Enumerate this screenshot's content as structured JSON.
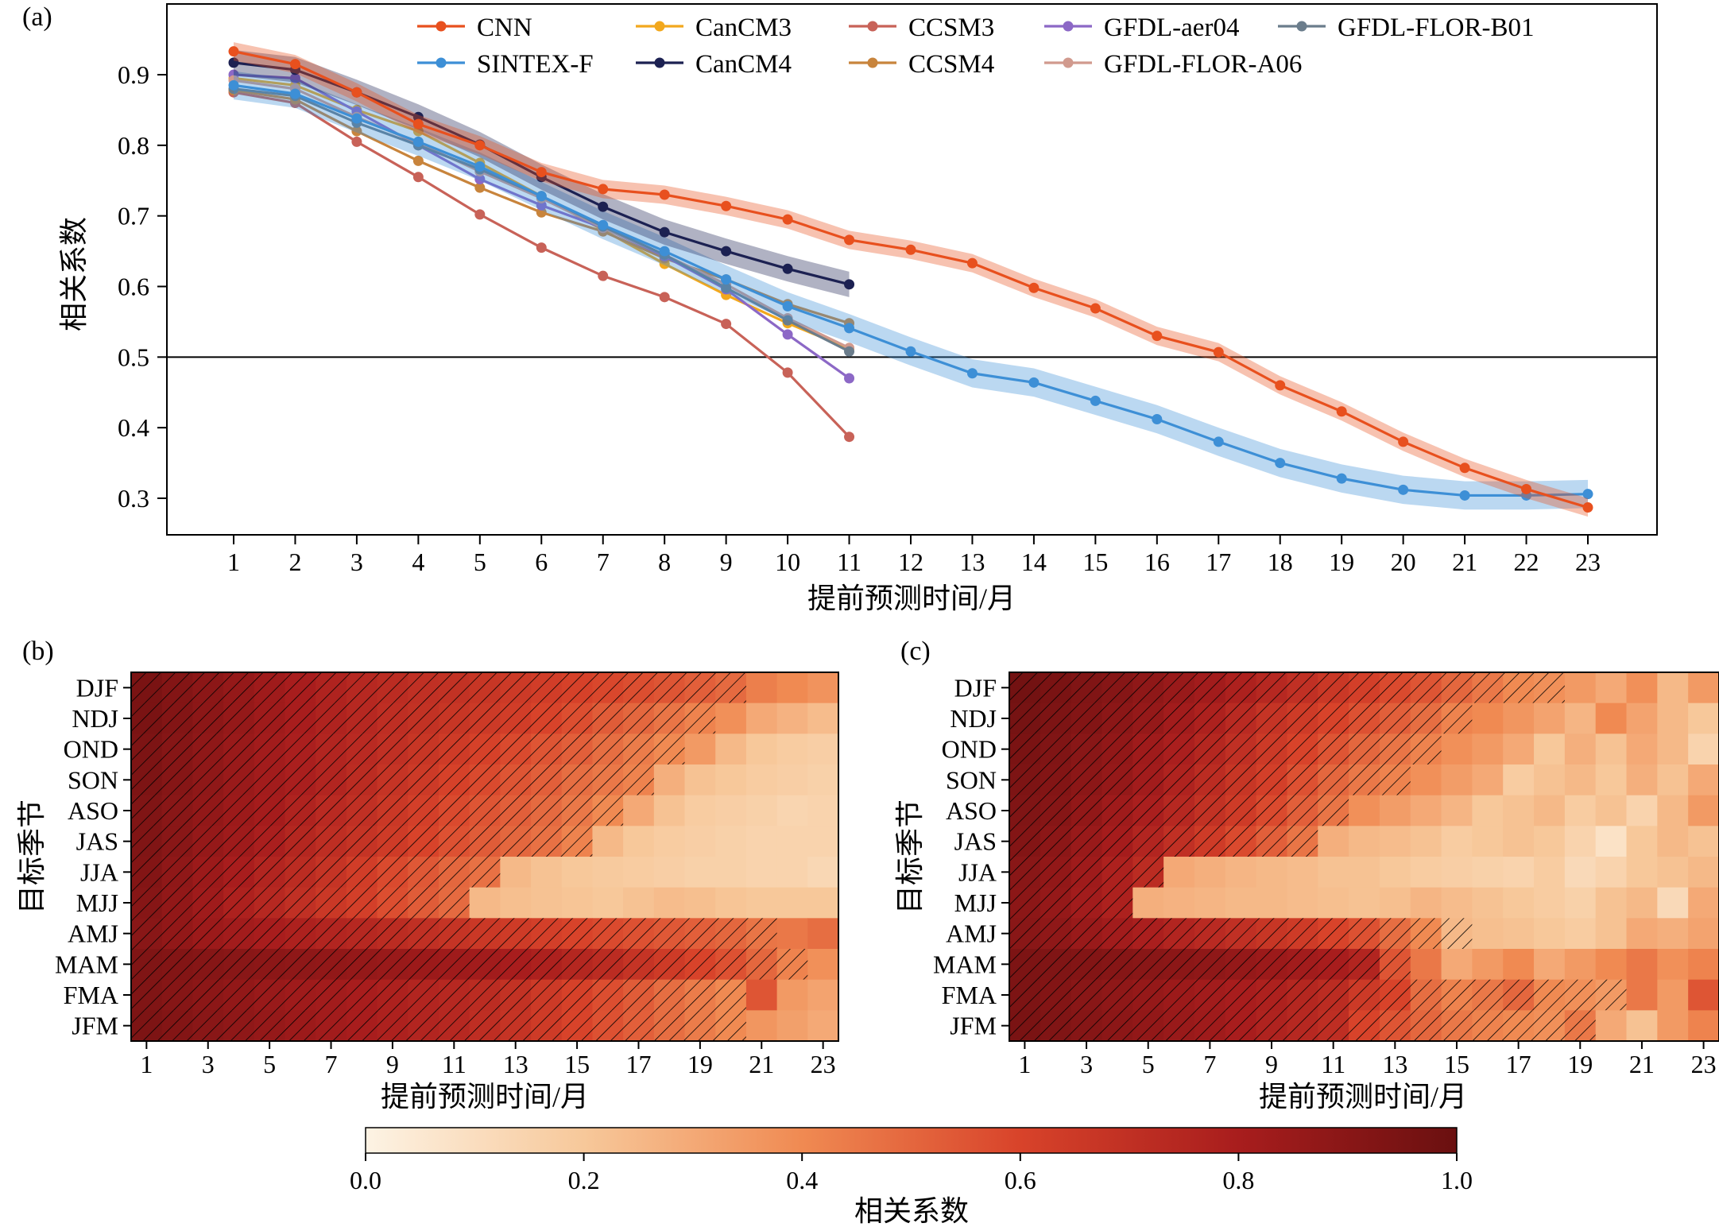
{
  "chart_data": [
    {
      "panel": "(a)",
      "type": "line",
      "xlabel": "提前预测时间/月",
      "ylabel": "相关系数",
      "xlim": [
        1,
        23
      ],
      "ylim": [
        0.25,
        1.0
      ],
      "xticks": [
        1,
        2,
        3,
        4,
        5,
        6,
        7,
        8,
        9,
        10,
        11,
        12,
        13,
        14,
        15,
        16,
        17,
        18,
        19,
        20,
        21,
        22,
        23
      ],
      "yticks": [
        0.3,
        0.4,
        0.5,
        0.6,
        0.7,
        0.8,
        0.9
      ],
      "reference_line": 0.5,
      "legend": "top",
      "series": [
        {
          "name": "CNN",
          "color": "#e8501e",
          "band": 0.013,
          "x": [
            1,
            2,
            3,
            4,
            5,
            6,
            7,
            8,
            9,
            10,
            11,
            12,
            13,
            14,
            15,
            16,
            17,
            18,
            19,
            20,
            21,
            22,
            23
          ],
          "values": [
            0.933,
            0.915,
            0.875,
            0.83,
            0.8,
            0.762,
            0.738,
            0.73,
            0.714,
            0.695,
            0.666,
            0.652,
            0.633,
            0.598,
            0.569,
            0.53,
            0.507,
            0.46,
            0.423,
            0.38,
            0.343,
            0.313,
            0.287
          ]
        },
        {
          "name": "SINTEX-F",
          "color": "#3d8fd6",
          "band": 0.02,
          "x": [
            1,
            2,
            3,
            4,
            5,
            6,
            7,
            8,
            9,
            10,
            11,
            12,
            13,
            14,
            15,
            16,
            17,
            18,
            19,
            20,
            21,
            22,
            23
          ],
          "values": [
            0.885,
            0.873,
            0.838,
            0.805,
            0.77,
            0.728,
            0.687,
            0.65,
            0.61,
            0.572,
            0.541,
            0.508,
            0.477,
            0.464,
            0.438,
            0.412,
            0.38,
            0.35,
            0.328,
            0.312,
            0.304,
            0.304,
            0.306
          ]
        },
        {
          "name": "CanCM3",
          "color": "#f2a81d",
          "x": [
            1,
            2,
            3,
            4,
            5,
            6,
            7,
            8,
            9,
            10,
            11
          ],
          "values": [
            0.895,
            0.885,
            0.85,
            0.82,
            0.775,
            0.728,
            0.68,
            0.632,
            0.588,
            0.548,
            0.512
          ]
        },
        {
          "name": "CanCM4",
          "color": "#1c2152",
          "band": 0.018,
          "x": [
            1,
            2,
            3,
            4,
            5,
            6,
            7,
            8,
            9,
            10,
            11
          ],
          "values": [
            0.917,
            0.907,
            0.875,
            0.84,
            0.801,
            0.755,
            0.713,
            0.677,
            0.65,
            0.625,
            0.603
          ]
        },
        {
          "name": "CCSM3",
          "color": "#c86258",
          "x": [
            1,
            2,
            3,
            4,
            5,
            6,
            7,
            8,
            9,
            10,
            11
          ],
          "values": [
            0.875,
            0.86,
            0.805,
            0.755,
            0.702,
            0.655,
            0.615,
            0.585,
            0.547,
            0.478,
            0.387
          ]
        },
        {
          "name": "CCSM4",
          "color": "#c8843c",
          "x": [
            1,
            2,
            3,
            4,
            5,
            6,
            7,
            8,
            9,
            10,
            11
          ],
          "values": [
            0.878,
            0.865,
            0.82,
            0.778,
            0.74,
            0.705,
            0.678,
            0.64,
            0.61,
            0.575,
            0.548
          ]
        },
        {
          "name": "GFDL-aer04",
          "color": "#8c68c6",
          "x": [
            1,
            2,
            3,
            4,
            5,
            6,
            7,
            8,
            9,
            10,
            11
          ],
          "values": [
            0.9,
            0.895,
            0.848,
            0.8,
            0.752,
            0.715,
            0.683,
            0.643,
            0.596,
            0.532,
            0.47
          ]
        },
        {
          "name": "GFDL-FLOR-A06",
          "color": "#d19a8e",
          "x": [
            1,
            2,
            3,
            4,
            5,
            6,
            7,
            8,
            9,
            10,
            11
          ],
          "values": [
            0.892,
            0.88,
            0.84,
            0.803,
            0.763,
            0.725,
            0.683,
            0.645,
            0.603,
            0.555,
            0.513
          ]
        },
        {
          "name": "GFDL-FLOR-B01",
          "color": "#6b7d8c",
          "x": [
            1,
            2,
            3,
            4,
            5,
            6,
            7,
            8,
            9,
            10,
            11
          ],
          "values": [
            0.88,
            0.87,
            0.832,
            0.8,
            0.766,
            0.728,
            0.685,
            0.645,
            0.598,
            0.552,
            0.508
          ]
        }
      ]
    },
    {
      "panel": "(b)",
      "type": "heatmap",
      "xlabel": "提前预测时间/月",
      "ylabel": "目标季节",
      "x": [
        1,
        2,
        3,
        4,
        5,
        6,
        7,
        8,
        9,
        10,
        11,
        12,
        13,
        14,
        15,
        16,
        17,
        18,
        19,
        20,
        21,
        22,
        23
      ],
      "xticklabels": [
        "1",
        "3",
        "5",
        "7",
        "9",
        "11",
        "13",
        "15",
        "17",
        "19",
        "21",
        "23"
      ],
      "seasons": [
        "DJF",
        "NDJ",
        "OND",
        "SON",
        "ASO",
        "JAS",
        "JJA",
        "MJJ",
        "AMJ",
        "MAM",
        "FMA",
        "JFM"
      ],
      "significant_length": [
        20,
        19,
        18,
        17,
        16,
        15,
        12,
        11,
        21,
        22,
        20,
        20
      ],
      "values": [
        [
          0.95,
          0.92,
          0.89,
          0.86,
          0.83,
          0.8,
          0.77,
          0.74,
          0.72,
          0.7,
          0.69,
          0.67,
          0.65,
          0.63,
          0.61,
          0.59,
          0.57,
          0.55,
          0.52,
          0.49,
          0.43,
          0.4,
          0.37
        ],
        [
          0.95,
          0.92,
          0.89,
          0.86,
          0.83,
          0.8,
          0.77,
          0.74,
          0.71,
          0.69,
          0.67,
          0.65,
          0.63,
          0.6,
          0.57,
          0.53,
          0.5,
          0.46,
          0.42,
          0.38,
          0.3,
          0.27,
          0.24
        ],
        [
          0.94,
          0.91,
          0.88,
          0.85,
          0.82,
          0.79,
          0.76,
          0.73,
          0.7,
          0.67,
          0.64,
          0.61,
          0.58,
          0.55,
          0.52,
          0.48,
          0.44,
          0.4,
          0.35,
          0.25,
          0.2,
          0.18,
          0.17
        ],
        [
          0.94,
          0.91,
          0.88,
          0.85,
          0.82,
          0.79,
          0.76,
          0.72,
          0.68,
          0.65,
          0.61,
          0.58,
          0.55,
          0.52,
          0.48,
          0.45,
          0.42,
          0.28,
          0.22,
          0.2,
          0.18,
          0.17,
          0.16
        ],
        [
          0.93,
          0.9,
          0.87,
          0.84,
          0.81,
          0.77,
          0.73,
          0.7,
          0.66,
          0.62,
          0.58,
          0.55,
          0.52,
          0.49,
          0.45,
          0.4,
          0.3,
          0.22,
          0.18,
          0.17,
          0.16,
          0.14,
          0.15
        ],
        [
          0.93,
          0.9,
          0.86,
          0.83,
          0.79,
          0.75,
          0.71,
          0.68,
          0.64,
          0.6,
          0.56,
          0.53,
          0.5,
          0.47,
          0.42,
          0.25,
          0.2,
          0.18,
          0.17,
          0.16,
          0.15,
          0.15,
          0.15
        ],
        [
          0.92,
          0.88,
          0.84,
          0.8,
          0.76,
          0.72,
          0.68,
          0.63,
          0.58,
          0.54,
          0.5,
          0.47,
          0.25,
          0.22,
          0.2,
          0.19,
          0.18,
          0.17,
          0.16,
          0.16,
          0.15,
          0.15,
          0.13
        ],
        [
          0.91,
          0.87,
          0.83,
          0.78,
          0.74,
          0.7,
          0.66,
          0.62,
          0.57,
          0.53,
          0.49,
          0.25,
          0.23,
          0.22,
          0.21,
          0.2,
          0.22,
          0.24,
          0.23,
          0.21,
          0.2,
          0.2,
          0.2
        ],
        [
          0.9,
          0.87,
          0.84,
          0.82,
          0.8,
          0.78,
          0.76,
          0.74,
          0.72,
          0.7,
          0.68,
          0.66,
          0.64,
          0.62,
          0.6,
          0.58,
          0.56,
          0.54,
          0.52,
          0.5,
          0.46,
          0.45,
          0.48
        ],
        [
          0.93,
          0.92,
          0.91,
          0.9,
          0.89,
          0.88,
          0.87,
          0.86,
          0.85,
          0.84,
          0.83,
          0.82,
          0.8,
          0.78,
          0.75,
          0.72,
          0.68,
          0.64,
          0.6,
          0.56,
          0.5,
          0.42,
          0.38
        ],
        [
          0.93,
          0.91,
          0.89,
          0.87,
          0.85,
          0.83,
          0.82,
          0.8,
          0.78,
          0.76,
          0.74,
          0.72,
          0.69,
          0.65,
          0.61,
          0.57,
          0.53,
          0.48,
          0.44,
          0.4,
          0.55,
          0.35,
          0.32
        ],
        [
          0.94,
          0.92,
          0.9,
          0.88,
          0.86,
          0.84,
          0.82,
          0.8,
          0.78,
          0.76,
          0.74,
          0.71,
          0.68,
          0.64,
          0.6,
          0.56,
          0.52,
          0.48,
          0.44,
          0.4,
          0.36,
          0.33,
          0.3
        ]
      ]
    },
    {
      "panel": "(c)",
      "type": "heatmap",
      "xlabel": "提前预测时间/月",
      "ylabel": "目标季节",
      "x": [
        1,
        2,
        3,
        4,
        5,
        6,
        7,
        8,
        9,
        10,
        11,
        12,
        13,
        14,
        15,
        16,
        17,
        18,
        19,
        20,
        21,
        22,
        23
      ],
      "xticklabels": [
        "1",
        "3",
        "5",
        "7",
        "9",
        "11",
        "13",
        "15",
        "17",
        "19",
        "21",
        "23"
      ],
      "seasons": [
        "DJF",
        "NDJ",
        "OND",
        "SON",
        "ASO",
        "JAS",
        "JJA",
        "MJJ",
        "AMJ",
        "MAM",
        "FMA",
        "JFM"
      ],
      "significant_length": [
        18,
        15,
        14,
        13,
        11,
        10,
        5,
        4,
        15,
        13,
        20,
        19
      ],
      "values": [
        [
          0.97,
          0.95,
          0.93,
          0.91,
          0.88,
          0.85,
          0.82,
          0.78,
          0.74,
          0.7,
          0.66,
          0.62,
          0.58,
          0.55,
          0.5,
          0.45,
          0.4,
          0.38,
          0.35,
          0.3,
          0.38,
          0.25,
          0.35
        ],
        [
          0.96,
          0.94,
          0.92,
          0.89,
          0.86,
          0.82,
          0.78,
          0.73,
          0.68,
          0.64,
          0.6,
          0.56,
          0.52,
          0.48,
          0.42,
          0.4,
          0.36,
          0.32,
          0.26,
          0.4,
          0.32,
          0.25,
          0.2
        ],
        [
          0.95,
          0.93,
          0.9,
          0.87,
          0.83,
          0.79,
          0.75,
          0.7,
          0.65,
          0.6,
          0.55,
          0.5,
          0.46,
          0.42,
          0.38,
          0.35,
          0.3,
          0.2,
          0.28,
          0.22,
          0.3,
          0.25,
          0.15
        ],
        [
          0.94,
          0.92,
          0.89,
          0.86,
          0.82,
          0.77,
          0.72,
          0.67,
          0.62,
          0.56,
          0.5,
          0.45,
          0.42,
          0.38,
          0.34,
          0.3,
          0.18,
          0.22,
          0.25,
          0.2,
          0.28,
          0.22,
          0.3
        ],
        [
          0.93,
          0.91,
          0.87,
          0.83,
          0.79,
          0.74,
          0.69,
          0.64,
          0.58,
          0.52,
          0.46,
          0.38,
          0.34,
          0.3,
          0.26,
          0.2,
          0.22,
          0.25,
          0.18,
          0.22,
          0.15,
          0.25,
          0.35
        ],
        [
          0.92,
          0.89,
          0.85,
          0.81,
          0.76,
          0.7,
          0.64,
          0.58,
          0.52,
          0.46,
          0.28,
          0.25,
          0.24,
          0.22,
          0.18,
          0.2,
          0.22,
          0.2,
          0.15,
          0.08,
          0.2,
          0.25,
          0.22
        ],
        [
          0.9,
          0.87,
          0.83,
          0.78,
          0.72,
          0.3,
          0.28,
          0.26,
          0.25,
          0.24,
          0.22,
          0.22,
          0.2,
          0.18,
          0.17,
          0.16,
          0.15,
          0.18,
          0.12,
          0.15,
          0.2,
          0.22,
          0.25
        ],
        [
          0.89,
          0.86,
          0.82,
          0.78,
          0.28,
          0.27,
          0.26,
          0.25,
          0.25,
          0.24,
          0.23,
          0.22,
          0.23,
          0.26,
          0.24,
          0.22,
          0.2,
          0.18,
          0.16,
          0.22,
          0.25,
          0.12,
          0.3
        ],
        [
          0.9,
          0.88,
          0.85,
          0.82,
          0.79,
          0.76,
          0.73,
          0.7,
          0.67,
          0.64,
          0.6,
          0.56,
          0.48,
          0.4,
          0.25,
          0.23,
          0.22,
          0.2,
          0.18,
          0.22,
          0.3,
          0.28,
          0.32
        ],
        [
          0.94,
          0.93,
          0.92,
          0.91,
          0.9,
          0.89,
          0.88,
          0.86,
          0.84,
          0.82,
          0.8,
          0.76,
          0.55,
          0.45,
          0.3,
          0.35,
          0.4,
          0.3,
          0.35,
          0.4,
          0.45,
          0.38,
          0.42
        ],
        [
          0.94,
          0.92,
          0.9,
          0.88,
          0.86,
          0.84,
          0.82,
          0.8,
          0.78,
          0.75,
          0.72,
          0.65,
          0.6,
          0.48,
          0.42,
          0.45,
          0.5,
          0.4,
          0.38,
          0.35,
          0.45,
          0.35,
          0.55
        ],
        [
          0.95,
          0.93,
          0.91,
          0.89,
          0.87,
          0.85,
          0.83,
          0.8,
          0.77,
          0.74,
          0.71,
          0.6,
          0.55,
          0.5,
          0.45,
          0.42,
          0.4,
          0.38,
          0.45,
          0.3,
          0.22,
          0.35,
          0.42
        ]
      ]
    },
    {
      "type": "colorbar",
      "label": "相关系数",
      "range": [
        0.0,
        1.0
      ],
      "ticks": [
        "0.0",
        "0.2",
        "0.4",
        "0.6",
        "0.8",
        "1.0"
      ],
      "colors": [
        "#fdf3e4",
        "#f7c89a",
        "#f08a52",
        "#d8432a",
        "#a81d1d",
        "#6a1010"
      ]
    }
  ]
}
